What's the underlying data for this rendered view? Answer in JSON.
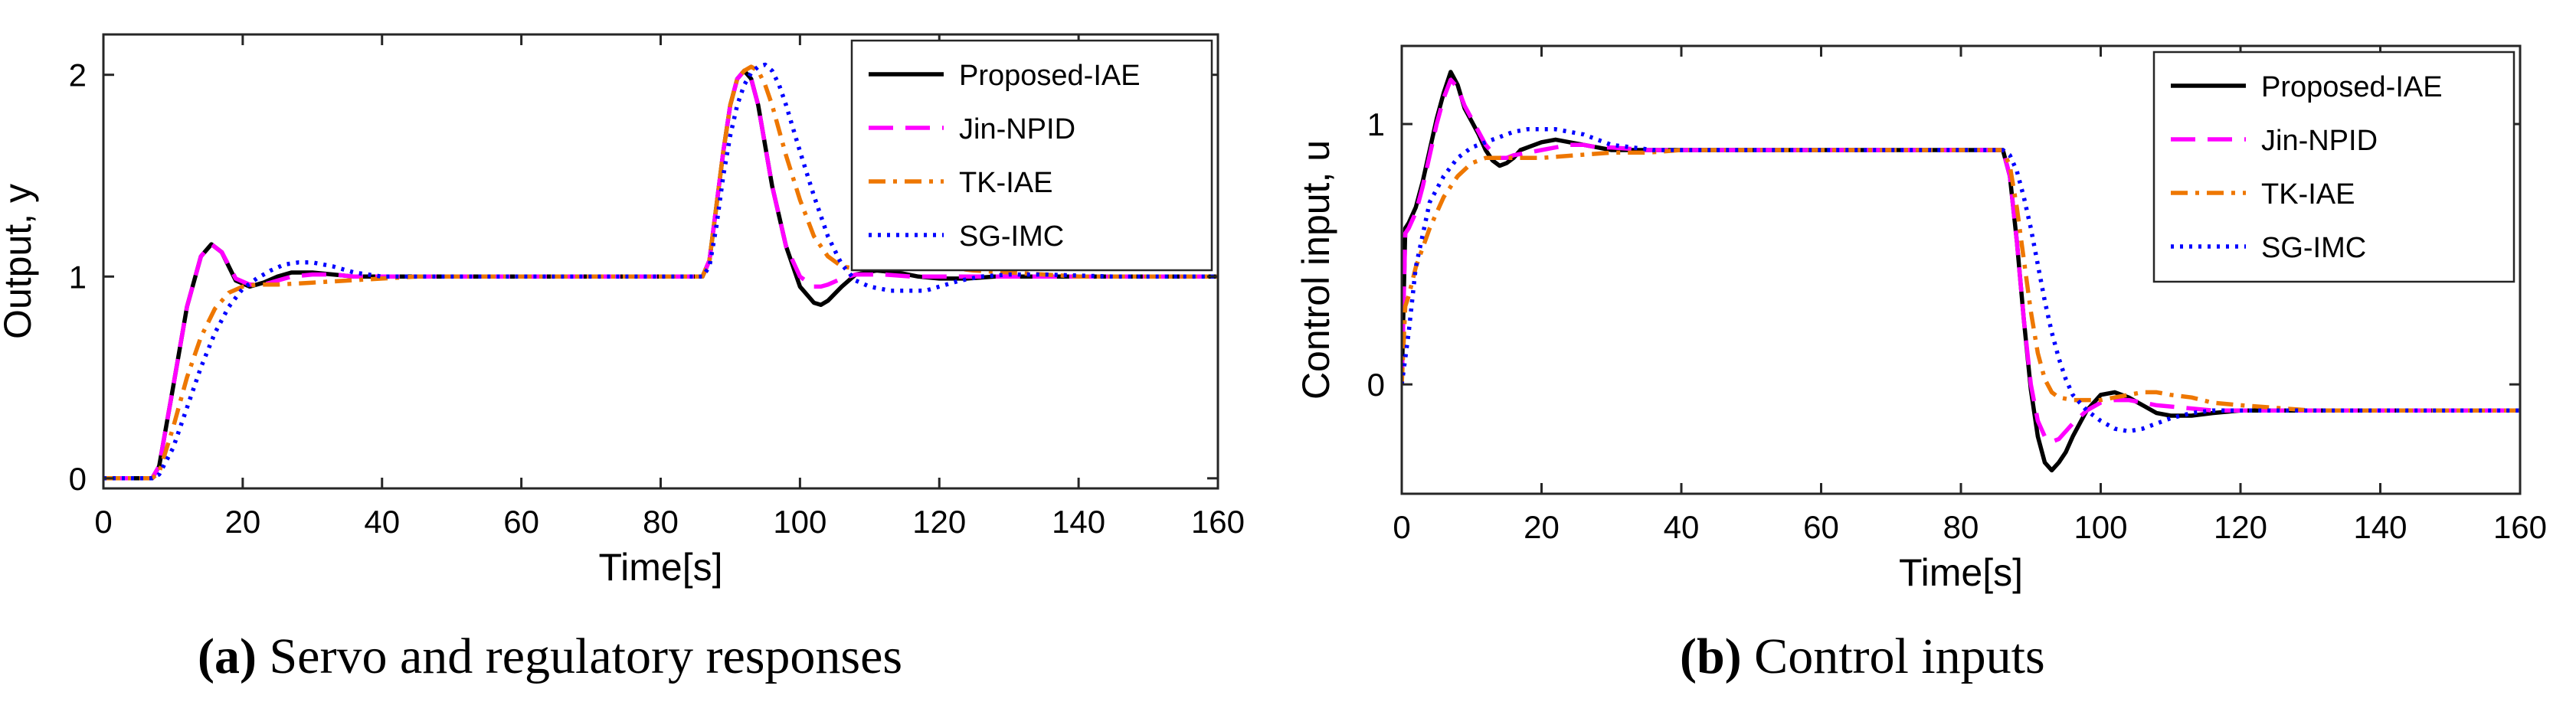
{
  "captions": [
    {
      "label": "(a)",
      "text": "Servo and regulatory responses"
    },
    {
      "label": "(b)",
      "text": "Control inputs"
    }
  ],
  "chart_data": [
    {
      "type": "line",
      "xlabel": "Time[s]",
      "ylabel": "Output, y",
      "xlim": [
        0,
        160
      ],
      "ylim": [
        -0.05,
        2.2
      ],
      "xticks": [
        0,
        20,
        40,
        60,
        80,
        100,
        120,
        140,
        160
      ],
      "yticks": [
        0,
        1,
        2
      ],
      "legend_position": "top-right",
      "series": [
        {
          "name": "Proposed-IAE",
          "color": "#000000",
          "style": "solid",
          "x": [
            0,
            7,
            8,
            10,
            12,
            14,
            15.5,
            17,
            19,
            21,
            23,
            25,
            27,
            30,
            33,
            36,
            40,
            50,
            60,
            70,
            80,
            86,
            87,
            88,
            89,
            90,
            91,
            92,
            93,
            94,
            95,
            96,
            98,
            100,
            102,
            103,
            104,
            106,
            108,
            111,
            114,
            117,
            120,
            124,
            128,
            135,
            145,
            160
          ],
          "y": [
            0,
            0,
            0.06,
            0.45,
            0.85,
            1.1,
            1.16,
            1.12,
            0.98,
            0.95,
            0.97,
            1.0,
            1.02,
            1.02,
            1.01,
            1.0,
            1.0,
            1.0,
            1.0,
            1.0,
            1.0,
            1.0,
            1.08,
            1.35,
            1.62,
            1.85,
            1.98,
            2.02,
            1.98,
            1.85,
            1.65,
            1.45,
            1.15,
            0.95,
            0.87,
            0.86,
            0.88,
            0.95,
            1.01,
            1.03,
            1.02,
            1.0,
            0.99,
            0.99,
            1.0,
            1.0,
            1.0,
            1.0
          ]
        },
        {
          "name": "Jin-NPID",
          "color": "#ff00ff",
          "style": "dashed",
          "x": [
            0,
            7,
            8,
            10,
            12,
            14,
            15.5,
            17,
            19,
            21,
            23,
            25,
            27,
            30,
            33,
            36,
            40,
            50,
            60,
            70,
            80,
            86,
            87,
            88,
            89,
            90,
            91,
            92,
            93,
            94,
            95,
            96,
            98,
            100,
            102,
            103,
            104,
            106,
            108,
            112,
            116,
            120,
            125,
            135,
            160
          ],
          "y": [
            0,
            0,
            0.06,
            0.45,
            0.85,
            1.1,
            1.16,
            1.12,
            0.99,
            0.96,
            0.96,
            0.98,
            1.0,
            1.01,
            1.01,
            1.0,
            1.0,
            1.0,
            1.0,
            1.0,
            1.0,
            1.0,
            1.08,
            1.35,
            1.62,
            1.85,
            1.98,
            2.02,
            1.98,
            1.85,
            1.65,
            1.45,
            1.15,
            1.0,
            0.95,
            0.95,
            0.96,
            0.99,
            1.01,
            1.01,
            1.0,
            1.0,
            1.0,
            1.0,
            1.0
          ]
        },
        {
          "name": "TK-IAE",
          "color": "#ee7700",
          "style": "dashdot",
          "x": [
            0,
            7,
            8,
            10,
            12,
            14,
            16,
            18,
            20,
            22,
            25,
            30,
            35,
            40,
            45,
            50,
            60,
            70,
            80,
            86,
            87,
            88,
            89,
            90,
            91,
            92,
            93,
            94,
            95,
            96,
            98,
            100,
            102,
            104,
            106,
            108,
            110,
            113,
            116,
            120,
            125,
            130,
            135,
            140,
            150,
            160
          ],
          "y": [
            0,
            0,
            0.03,
            0.25,
            0.5,
            0.7,
            0.84,
            0.92,
            0.95,
            0.96,
            0.96,
            0.97,
            0.98,
            0.99,
            1.0,
            1.0,
            1.0,
            1.0,
            1.0,
            1.0,
            1.08,
            1.35,
            1.62,
            1.85,
            1.98,
            2.02,
            2.04,
            2.02,
            1.95,
            1.85,
            1.6,
            1.38,
            1.2,
            1.1,
            1.05,
            1.04,
            1.05,
            1.06,
            1.06,
            1.05,
            1.03,
            1.02,
            1.01,
            1.0,
            1.0,
            1.0
          ]
        },
        {
          "name": "SG-IMC",
          "color": "#0000ff",
          "style": "dotted",
          "x": [
            0,
            7,
            8,
            10,
            12,
            14,
            16,
            18,
            20,
            22,
            24,
            26,
            28,
            30,
            33,
            36,
            40,
            45,
            50,
            60,
            70,
            80,
            86,
            87,
            88,
            89,
            90,
            91,
            92,
            93,
            94,
            95,
            96,
            97,
            98,
            100,
            102,
            104,
            106,
            108,
            110,
            113,
            116,
            118,
            120,
            123,
            126,
            130,
            135,
            145,
            160
          ],
          "y": [
            0,
            0,
            0.02,
            0.15,
            0.35,
            0.55,
            0.72,
            0.85,
            0.94,
            0.99,
            1.03,
            1.06,
            1.07,
            1.07,
            1.05,
            1.02,
            1.0,
            1.0,
            1.0,
            1.0,
            1.0,
            1.0,
            1.0,
            1.05,
            1.25,
            1.5,
            1.7,
            1.85,
            1.95,
            2.01,
            2.04,
            2.05,
            2.02,
            1.95,
            1.85,
            1.62,
            1.4,
            1.2,
            1.06,
            0.98,
            0.95,
            0.93,
            0.93,
            0.93,
            0.95,
            0.98,
            1.0,
            1.01,
            1.01,
            1.0,
            1.0
          ]
        }
      ]
    },
    {
      "type": "line",
      "xlabel": "Time[s]",
      "ylabel": "Control input, u",
      "xlim": [
        0,
        160
      ],
      "ylim": [
        -0.42,
        1.3
      ],
      "xticks": [
        0,
        20,
        40,
        60,
        80,
        100,
        120,
        140,
        160
      ],
      "yticks": [
        0,
        1
      ],
      "legend_position": "top-right",
      "series": [
        {
          "name": "Proposed-IAE",
          "color": "#000000",
          "style": "solid",
          "x": [
            0,
            0.5,
            1,
            2,
            3,
            4,
            5,
            6,
            7,
            8,
            9,
            10,
            11,
            12,
            13,
            14,
            15,
            16,
            17,
            18,
            20,
            22,
            24,
            26,
            28,
            30,
            35,
            40,
            50,
            60,
            70,
            80,
            86,
            87,
            88,
            89,
            90,
            91,
            92,
            93,
            94,
            95,
            96,
            97,
            98,
            100,
            102,
            104,
            106,
            108,
            110,
            113,
            116,
            120,
            125,
            130,
            140,
            160
          ],
          "y": [
            0,
            0.6,
            0.62,
            0.68,
            0.78,
            0.9,
            1.02,
            1.12,
            1.2,
            1.15,
            1.06,
            1.01,
            0.96,
            0.9,
            0.86,
            0.84,
            0.85,
            0.87,
            0.9,
            0.91,
            0.93,
            0.94,
            0.93,
            0.92,
            0.91,
            0.9,
            0.9,
            0.9,
            0.9,
            0.9,
            0.9,
            0.9,
            0.9,
            0.8,
            0.55,
            0.25,
            -0.02,
            -0.2,
            -0.3,
            -0.33,
            -0.3,
            -0.26,
            -0.2,
            -0.15,
            -0.1,
            -0.04,
            -0.03,
            -0.05,
            -0.08,
            -0.11,
            -0.12,
            -0.12,
            -0.11,
            -0.1,
            -0.1,
            -0.1,
            -0.1,
            -0.1
          ]
        },
        {
          "name": "Jin-NPID",
          "color": "#ff00ff",
          "style": "dashed",
          "x": [
            0,
            0.5,
            1,
            2,
            3,
            4,
            5,
            6,
            7,
            8,
            9,
            10,
            11,
            12,
            13,
            14,
            15,
            16,
            18,
            20,
            22,
            24,
            26,
            28,
            30,
            35,
            40,
            50,
            60,
            70,
            80,
            86,
            87,
            88,
            89,
            90,
            91,
            92,
            93,
            94,
            95,
            96,
            98,
            100,
            102,
            104,
            106,
            108,
            112,
            116,
            120,
            125,
            130,
            140,
            160
          ],
          "y": [
            0,
            0.58,
            0.6,
            0.66,
            0.76,
            0.88,
            1.0,
            1.1,
            1.17,
            1.14,
            1.07,
            1.02,
            0.97,
            0.92,
            0.89,
            0.87,
            0.87,
            0.88,
            0.89,
            0.9,
            0.91,
            0.92,
            0.92,
            0.91,
            0.91,
            0.9,
            0.9,
            0.9,
            0.9,
            0.9,
            0.9,
            0.9,
            0.8,
            0.55,
            0.25,
            0.0,
            -0.14,
            -0.2,
            -0.22,
            -0.21,
            -0.18,
            -0.15,
            -0.1,
            -0.07,
            -0.06,
            -0.06,
            -0.07,
            -0.08,
            -0.09,
            -0.1,
            -0.1,
            -0.1,
            -0.1,
            -0.1,
            -0.1
          ]
        },
        {
          "name": "TK-IAE",
          "color": "#ee7700",
          "style": "dashdot",
          "x": [
            0,
            0.5,
            1,
            2,
            4,
            6,
            8,
            10,
            12,
            14,
            16,
            18,
            20,
            25,
            30,
            35,
            40,
            50,
            60,
            70,
            80,
            86,
            87,
            88,
            89,
            90,
            91,
            92,
            93,
            94,
            96,
            98,
            100,
            102,
            104,
            106,
            108,
            110,
            113,
            116,
            120,
            125,
            130,
            140,
            160
          ],
          "y": [
            0,
            0.3,
            0.34,
            0.45,
            0.6,
            0.72,
            0.8,
            0.85,
            0.87,
            0.87,
            0.87,
            0.87,
            0.87,
            0.88,
            0.89,
            0.89,
            0.9,
            0.9,
            0.9,
            0.9,
            0.9,
            0.9,
            0.84,
            0.68,
            0.48,
            0.28,
            0.12,
            0.02,
            -0.03,
            -0.05,
            -0.06,
            -0.06,
            -0.06,
            -0.05,
            -0.04,
            -0.03,
            -0.03,
            -0.04,
            -0.05,
            -0.07,
            -0.08,
            -0.09,
            -0.1,
            -0.1,
            -0.1
          ]
        },
        {
          "name": "SG-IMC",
          "color": "#0000ff",
          "style": "dotted",
          "x": [
            0,
            0.5,
            1,
            2,
            4,
            6,
            8,
            10,
            12,
            14,
            16,
            18,
            20,
            22,
            24,
            26,
            28,
            30,
            33,
            36,
            40,
            45,
            50,
            60,
            70,
            80,
            86,
            87,
            88,
            89,
            90,
            91,
            92,
            93,
            94,
            95,
            96,
            98,
            100,
            102,
            104,
            106,
            108,
            110,
            113,
            116,
            120,
            124,
            128,
            135,
            160
          ],
          "y": [
            0,
            0.1,
            0.2,
            0.45,
            0.7,
            0.8,
            0.87,
            0.91,
            0.93,
            0.95,
            0.97,
            0.98,
            0.98,
            0.98,
            0.97,
            0.96,
            0.94,
            0.92,
            0.91,
            0.9,
            0.9,
            0.9,
            0.9,
            0.9,
            0.9,
            0.9,
            0.9,
            0.88,
            0.82,
            0.72,
            0.6,
            0.46,
            0.32,
            0.2,
            0.1,
            0.02,
            -0.04,
            -0.1,
            -0.14,
            -0.17,
            -0.18,
            -0.17,
            -0.15,
            -0.13,
            -0.11,
            -0.1,
            -0.1,
            -0.1,
            -0.1,
            -0.1,
            -0.1
          ]
        }
      ]
    }
  ]
}
